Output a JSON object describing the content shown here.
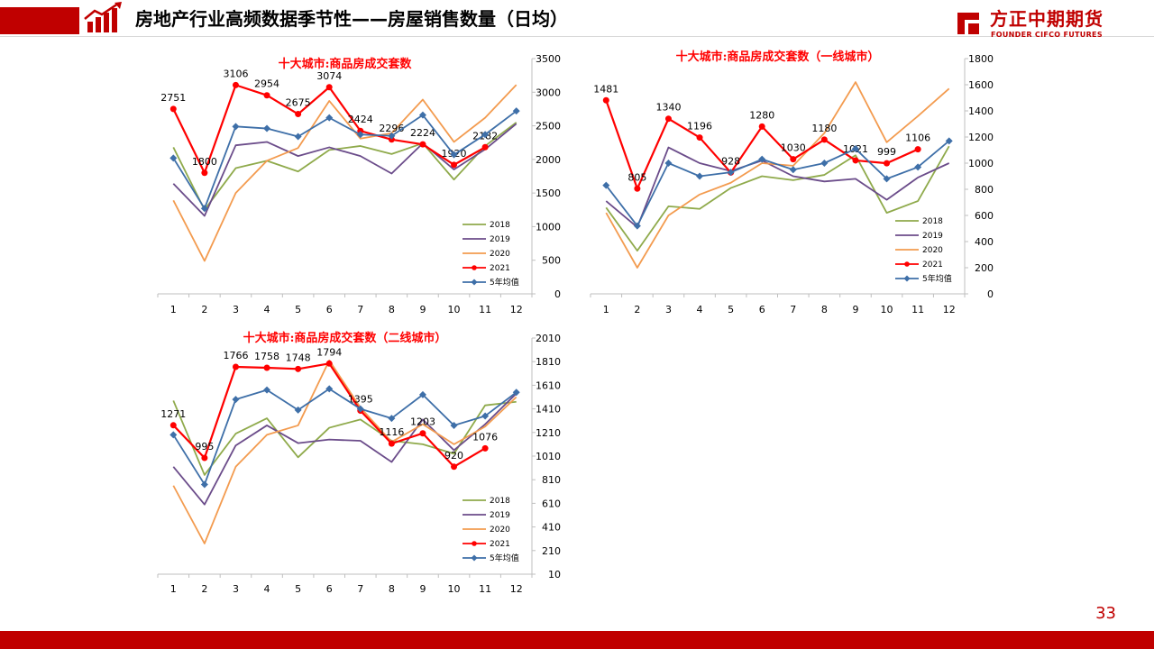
{
  "header": {
    "title": "房地产行业高频数据季节性——房屋销售数量（日均）",
    "brand_cn": "方正中期期货",
    "brand_en": "FOUNDER CIFCO FUTURES",
    "accent": "#c00000"
  },
  "footer": {
    "page_number": "33"
  },
  "chart_data": [
    {
      "type": "line",
      "title": "十大城市:商品房成交套数",
      "xlabel": "",
      "ylabel": "",
      "x": [
        "1",
        "2",
        "3",
        "4",
        "5",
        "6",
        "7",
        "8",
        "9",
        "10",
        "11",
        "12"
      ],
      "ylim": [
        0,
        3500
      ],
      "yticks": [
        "0",
        "500",
        "1000",
        "1500",
        "2000",
        "2500",
        "3000",
        "3500"
      ],
      "legend_position": "bottom-right",
      "series": [
        {
          "name": "2018",
          "color": "#8faa4b",
          "marker": "none",
          "values": [
            2180,
            1250,
            1870,
            1980,
            1820,
            2140,
            2200,
            2080,
            2240,
            1700,
            2200,
            2550
          ]
        },
        {
          "name": "2019",
          "color": "#6b4c8a",
          "marker": "none",
          "values": [
            1640,
            1160,
            2210,
            2260,
            2050,
            2180,
            2050,
            1790,
            2240,
            1850,
            2150,
            2530
          ]
        },
        {
          "name": "2020",
          "color": "#f39b4f",
          "marker": "none",
          "values": [
            1390,
            490,
            1500,
            1980,
            2170,
            2870,
            2310,
            2390,
            2890,
            2260,
            2620,
            3110
          ]
        },
        {
          "name": "2021",
          "color": "#ff0000",
          "marker": "circle",
          "values": [
            2751,
            1800,
            3106,
            2954,
            2675,
            3074,
            2424,
            2296,
            2224,
            1920,
            2182,
            null
          ],
          "labels": [
            "2751",
            "1800",
            "3106",
            "2954",
            "2675",
            "3074",
            "2424",
            "2296",
            "2224",
            "1920",
            "2182",
            ""
          ]
        },
        {
          "name": "5年均值",
          "color": "#3e6fa8",
          "marker": "diamond",
          "values": [
            2020,
            1270,
            2490,
            2460,
            2340,
            2620,
            2370,
            2350,
            2660,
            2070,
            2370,
            2720
          ]
        }
      ]
    },
    {
      "type": "line",
      "title": "十大城市:商品房成交套数（一线城市）",
      "xlabel": "",
      "ylabel": "",
      "x": [
        "1",
        "2",
        "3",
        "4",
        "5",
        "6",
        "7",
        "8",
        "9",
        "10",
        "11",
        "12"
      ],
      "ylim": [
        0,
        1800
      ],
      "yticks": [
        "0",
        "200",
        "400",
        "600",
        "800",
        "1000",
        "1200",
        "1400",
        "1600",
        "1800"
      ],
      "legend_position": "bottom-right",
      "series": [
        {
          "name": "2018",
          "color": "#8faa4b",
          "marker": "none",
          "values": [
            660,
            330,
            670,
            650,
            810,
            900,
            870,
            910,
            1060,
            620,
            710,
            1130
          ]
        },
        {
          "name": "2019",
          "color": "#6b4c8a",
          "marker": "none",
          "values": [
            710,
            510,
            1120,
            1000,
            940,
            1020,
            900,
            860,
            880,
            720,
            890,
            1000
          ]
        },
        {
          "name": "2020",
          "color": "#f39b4f",
          "marker": "none",
          "values": [
            620,
            200,
            600,
            760,
            850,
            1000,
            980,
            1230,
            1620,
            1160,
            1360,
            1570
          ]
        },
        {
          "name": "2021",
          "color": "#ff0000",
          "marker": "circle",
          "values": [
            1481,
            805,
            1340,
            1196,
            928,
            1280,
            1030,
            1180,
            1021,
            999,
            1106,
            null
          ],
          "labels": [
            "1481",
            "805",
            "1340",
            "1196",
            "928",
            "1280",
            "1030",
            "1180",
            "1021",
            "999",
            "1106",
            ""
          ]
        },
        {
          "name": "5年均值",
          "color": "#3e6fa8",
          "marker": "diamond",
          "values": [
            830,
            520,
            1000,
            900,
            930,
            1030,
            950,
            1000,
            1110,
            880,
            970,
            1170
          ]
        }
      ]
    },
    {
      "type": "line",
      "title": "十大城市:商品房成交套数（二线城市）",
      "xlabel": "",
      "ylabel": "",
      "x": [
        "1",
        "2",
        "3",
        "4",
        "5",
        "6",
        "7",
        "8",
        "9",
        "10",
        "11",
        "12"
      ],
      "ylim": [
        10,
        2010
      ],
      "yticks": [
        "10",
        "210",
        "410",
        "610",
        "810",
        "1010",
        "1210",
        "1410",
        "1610",
        "1810",
        "2010"
      ],
      "legend_position": "bottom-right",
      "series": [
        {
          "name": "2018",
          "color": "#8faa4b",
          "marker": "none",
          "values": [
            1480,
            850,
            1200,
            1330,
            1000,
            1250,
            1320,
            1140,
            1110,
            1030,
            1440,
            1470
          ]
        },
        {
          "name": "2019",
          "color": "#6b4c8a",
          "marker": "none",
          "values": [
            920,
            600,
            1100,
            1270,
            1120,
            1150,
            1140,
            960,
            1320,
            1060,
            1280,
            1540
          ]
        },
        {
          "name": "2020",
          "color": "#f39b4f",
          "marker": "none",
          "values": [
            760,
            270,
            920,
            1190,
            1270,
            1820,
            1420,
            1130,
            1280,
            1110,
            1260,
            1510
          ]
        },
        {
          "name": "2021",
          "color": "#ff0000",
          "marker": "circle",
          "values": [
            1271,
            995,
            1766,
            1758,
            1748,
            1794,
            1395,
            1116,
            1203,
            920,
            1076,
            null
          ],
          "labels": [
            "1271",
            "995",
            "1766",
            "1758",
            "1748",
            "1794",
            "1395",
            "1116",
            "1203",
            "920",
            "1076",
            ""
          ]
        },
        {
          "name": "5年均值",
          "color": "#3e6fa8",
          "marker": "diamond",
          "values": [
            1190,
            770,
            1490,
            1570,
            1400,
            1580,
            1410,
            1330,
            1530,
            1270,
            1350,
            1550
          ]
        }
      ]
    }
  ]
}
